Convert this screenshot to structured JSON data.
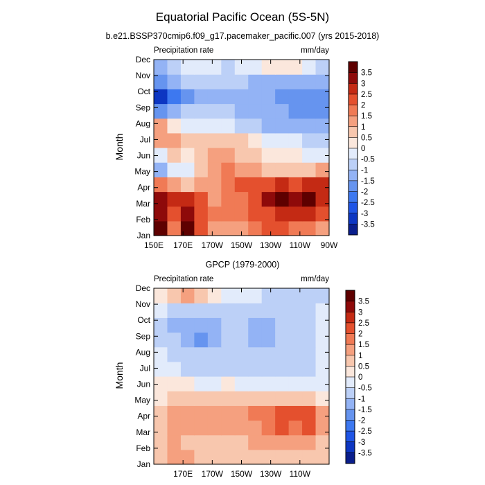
{
  "figure": {
    "title": "Equatorial Pacific Ocean (5S-5N)"
  },
  "colorbar": {
    "levels": [
      "-3.5",
      "-3",
      "-2.5",
      "-2",
      "-1.5",
      "-1",
      "-0.5",
      "0",
      "0.5",
      "1",
      "1.5",
      "2",
      "2.5",
      "3",
      "3.5"
    ],
    "colors": [
      "#0a1e8c",
      "#0d36c2",
      "#1f55e6",
      "#3d78f0",
      "#6694ef",
      "#93b3f5",
      "#bcd0f7",
      "#e2ebfb",
      "#fbe7dc",
      "#f8c7ae",
      "#f5a07f",
      "#f07a55",
      "#e4502e",
      "#c42a14",
      "#8e0a0a",
      "#5e0000"
    ]
  },
  "chart_data": [
    {
      "type": "heatmap",
      "title": "b.e21.BSSP370cmip6.f09_g17.pacemaker_pacific.007 (yrs 2015-2018)",
      "left_label": "Precipitation rate",
      "units": "mm/day",
      "ylabel": "Month",
      "x_ticks": [
        "150E",
        "170E",
        "170W",
        "150W",
        "130W",
        "110W",
        "90W"
      ],
      "y_ticks": [
        "Jan",
        "Feb",
        "Mar",
        "Apr",
        "May",
        "Jun",
        "Jul",
        "Aug",
        "Sep",
        "Oct",
        "Nov",
        "Dec"
      ],
      "x": [
        150,
        160,
        170,
        180,
        190,
        200,
        210,
        220,
        230,
        240,
        250,
        260,
        270
      ],
      "grid": [
        [
          3.5,
          1.5,
          3.5,
          2.0,
          1.0,
          1.0,
          1.0,
          1.5,
          2.0,
          2.0,
          1.5,
          1.5,
          1.0
        ],
        [
          3.0,
          2.0,
          3.0,
          2.0,
          1.5,
          1.5,
          1.5,
          2.0,
          2.0,
          2.5,
          2.5,
          2.5,
          2.0
        ],
        [
          3.0,
          2.5,
          2.5,
          2.0,
          1.0,
          1.5,
          1.5,
          2.0,
          3.0,
          3.5,
          3.0,
          3.5,
          2.5
        ],
        [
          1.5,
          1.0,
          0.5,
          1.0,
          1.0,
          1.5,
          2.0,
          2.0,
          2.0,
          2.5,
          2.0,
          2.5,
          2.5
        ],
        [
          -1.5,
          -0.5,
          -0.5,
          0.5,
          1.0,
          1.5,
          1.0,
          1.0,
          0.5,
          0.5,
          0.5,
          0.5,
          1.0
        ],
        [
          -0.5,
          0.5,
          0.0,
          0.5,
          1.0,
          1.0,
          0.5,
          0.5,
          0.0,
          0.0,
          0.0,
          -0.5,
          -0.5
        ],
        [
          1.0,
          1.0,
          0.5,
          0.5,
          0.5,
          0.5,
          0.5,
          0.0,
          -0.5,
          -0.5,
          -0.5,
          -1.0,
          -1.0
        ],
        [
          1.0,
          0.0,
          -0.5,
          -0.5,
          -0.5,
          -0.5,
          -1.0,
          -1.0,
          -1.5,
          -1.5,
          -1.5,
          -1.5,
          -1.5
        ],
        [
          -2.0,
          -1.5,
          -1.0,
          -1.0,
          -1.0,
          -1.0,
          -1.5,
          -1.5,
          -1.5,
          -1.5,
          -2.0,
          -2.0,
          -2.0
        ],
        [
          -3.5,
          -2.5,
          -2.0,
          -1.5,
          -1.5,
          -1.5,
          -1.5,
          -1.5,
          -1.5,
          -2.0,
          -2.0,
          -2.0,
          -2.0
        ],
        [
          -2.0,
          -1.5,
          -1.0,
          -1.0,
          -1.0,
          -1.0,
          -1.0,
          -1.5,
          -1.5,
          -1.5,
          -1.5,
          -1.5,
          -1.5
        ],
        [
          -1.5,
          -1.0,
          -0.5,
          -0.5,
          -0.5,
          -1.0,
          -0.5,
          -0.5,
          0.0,
          0.0,
          0.0,
          -0.5,
          -1.0
        ]
      ],
      "colorbar_labels": [
        "3.5",
        "3",
        "2.5",
        "2",
        "1.5",
        "1",
        "0.5",
        "0",
        "-0.5",
        "-1",
        "-1.5",
        "-2",
        "-2.5",
        "-3",
        "-3.5"
      ]
    },
    {
      "type": "heatmap",
      "title": "GPCP (1979-2000)",
      "left_label": "Precipitation rate",
      "units": "mm/day",
      "ylabel": "Month",
      "x_ticks": [
        "170E",
        "170W",
        "150W",
        "130W",
        "110W"
      ],
      "y_ticks": [
        "Jan",
        "Feb",
        "Mar",
        "Apr",
        "May",
        "Jun",
        "Jul",
        "Aug",
        "Sep",
        "Oct",
        "Nov",
        "Dec"
      ],
      "x": [
        150,
        160,
        170,
        180,
        190,
        200,
        210,
        220,
        230,
        240,
        250,
        260,
        270
      ],
      "grid": [
        [
          0.5,
          1.0,
          1.0,
          0.5,
          0.5,
          0.5,
          0.5,
          0.5,
          0.5,
          0.5,
          0.5,
          0.5,
          0.5
        ],
        [
          0.5,
          1.0,
          0.5,
          0.5,
          0.5,
          0.5,
          0.5,
          1.0,
          1.0,
          1.0,
          1.0,
          1.0,
          0.5
        ],
        [
          0.5,
          1.0,
          1.0,
          1.0,
          1.0,
          1.0,
          1.0,
          1.0,
          1.5,
          2.0,
          1.5,
          2.0,
          1.0
        ],
        [
          0.5,
          1.0,
          1.0,
          1.0,
          1.0,
          1.0,
          1.0,
          1.5,
          1.5,
          2.0,
          2.0,
          2.0,
          1.0
        ],
        [
          0.0,
          0.5,
          0.5,
          0.5,
          0.5,
          0.5,
          0.5,
          0.5,
          0.5,
          0.5,
          0.5,
          0.5,
          0.0
        ],
        [
          0.0,
          0.0,
          0.0,
          -0.5,
          -0.5,
          0.0,
          -0.5,
          -0.5,
          -0.5,
          -0.5,
          -0.5,
          -0.5,
          -0.5
        ],
        [
          -0.5,
          -0.5,
          -1.0,
          -1.0,
          -1.0,
          -1.0,
          -1.0,
          -1.0,
          -1.0,
          -1.0,
          -1.0,
          -1.0,
          -0.5
        ],
        [
          -0.5,
          -1.0,
          -1.0,
          -1.0,
          -1.0,
          -1.0,
          -1.0,
          -1.0,
          -1.0,
          -1.0,
          -1.0,
          -1.0,
          -0.5
        ],
        [
          -1.0,
          -1.0,
          -1.5,
          -2.0,
          -1.5,
          -1.0,
          -1.0,
          -1.5,
          -1.5,
          -1.0,
          -1.0,
          -1.0,
          -0.5
        ],
        [
          -1.0,
          -1.5,
          -1.5,
          -1.5,
          -1.5,
          -1.0,
          -1.0,
          -1.5,
          -1.5,
          -1.0,
          -1.0,
          -1.0,
          -0.5
        ],
        [
          -0.5,
          -1.0,
          -1.0,
          -1.0,
          -1.0,
          -1.0,
          -1.0,
          -1.0,
          -1.0,
          -1.0,
          -1.0,
          -1.0,
          -0.5
        ],
        [
          0.0,
          0.5,
          1.0,
          0.5,
          0.0,
          -0.5,
          -0.5,
          -0.5,
          -1.0,
          -1.0,
          -1.0,
          -1.0,
          -1.0
        ]
      ],
      "colorbar_labels": [
        "3.5",
        "3",
        "2.5",
        "2",
        "1.5",
        "1",
        "0.5",
        "0",
        "-0.5",
        "-1",
        "-1.5",
        "-2",
        "-2.5",
        "-3",
        "-3.5"
      ]
    }
  ]
}
